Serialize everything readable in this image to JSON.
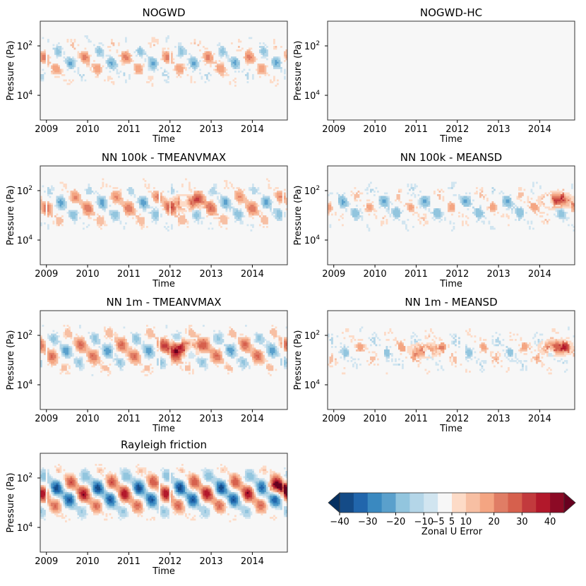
{
  "chart_data": {
    "type": "heatmap",
    "xlabel": "Time",
    "ylabel": "Pressure (Pa)",
    "x_ticks": [
      "2009",
      "2010",
      "2011",
      "2012",
      "2013",
      "2014"
    ],
    "y_ticks": [
      {
        "base": "10",
        "exp": "2"
      },
      {
        "base": "10",
        "exp": "4"
      }
    ],
    "xlim": [
      2008.85,
      2014.85
    ],
    "ylim_log10": [
      1.0,
      5.0
    ],
    "panels": [
      {
        "title": "NOGWD",
        "intensity": 0.55,
        "phase": 0.0,
        "blue_bias": 0.45,
        "hot": [],
        "sparse": 0.3
      },
      {
        "title": "NOGWD-HC",
        "intensity": 0.0,
        "phase": 0.0,
        "blue_bias": 0.5,
        "hot": [],
        "sparse": 0.0
      },
      {
        "title": "NN 100k - TMEANVMAX",
        "intensity": 0.6,
        "phase": 0.1,
        "blue_bias": 0.4,
        "hot": [
          {
            "year": 2012.4,
            "lp": 2.5,
            "amp": 30
          }
        ],
        "sparse": 0.2
      },
      {
        "title": "NN 100k - MEANSD",
        "intensity": 0.5,
        "phase": 0.2,
        "blue_bias": 0.7,
        "hot": [
          {
            "year": 2014.4,
            "lp": 2.4,
            "amp": 32
          }
        ],
        "sparse": 0.35
      },
      {
        "title": "NN 1m - TMEANVMAX",
        "intensity": 0.65,
        "phase": 0.05,
        "blue_bias": 0.35,
        "hot": [
          {
            "year": 2012.3,
            "lp": 2.5,
            "amp": 38
          }
        ],
        "sparse": 0.15
      },
      {
        "title": "NN 1m - MEANSD",
        "intensity": 0.45,
        "phase": 0.3,
        "blue_bias": 0.5,
        "hot": [
          {
            "year": 2014.4,
            "lp": 2.5,
            "amp": 30
          },
          {
            "year": 2011.2,
            "lp": 2.6,
            "amp": 22
          }
        ],
        "sparse": 0.4
      },
      {
        "title": "Rayleigh friction",
        "intensity": 1.0,
        "phase": 0.15,
        "blue_bias": 0.5,
        "hot": [
          {
            "year": 2014.7,
            "lp": 2.4,
            "amp": 28
          }
        ],
        "sparse": 0.05
      }
    ],
    "colorbar": {
      "label": "Zonal U Error",
      "levels": [
        -40,
        -35,
        -30,
        -25,
        -20,
        -15,
        -10,
        -5,
        5,
        10,
        15,
        20,
        25,
        30,
        35,
        40
      ],
      "tick_labels": [
        "−40",
        "−30",
        "−20",
        "−10",
        "−5",
        "5",
        "10",
        "20",
        "30",
        "40"
      ],
      "colors": [
        "#053061",
        "#144b87",
        "#2166ac",
        "#3a89c0",
        "#5aa0cc",
        "#92c5de",
        "#b4d6e8",
        "#d1e5f0",
        "#f7f7f7",
        "#fddbc7",
        "#f7bfa3",
        "#f4a582",
        "#e07d65",
        "#d6604d",
        "#c23a3d",
        "#b2182b",
        "#8c0a25",
        "#67001f"
      ]
    }
  }
}
